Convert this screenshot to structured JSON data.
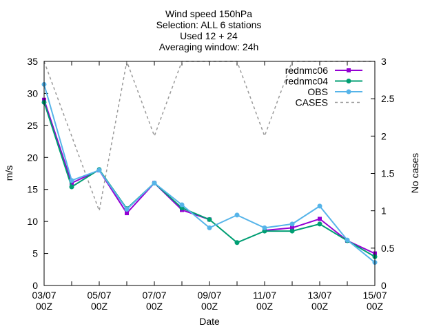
{
  "chart_data": {
    "type": "line",
    "title_lines": [
      "Wind speed 150hPa",
      "Selection: ALL      6 stations",
      "Used 12 + 24",
      "Averaging window: 24h"
    ],
    "xlabel": "Date",
    "ylabel": "m/s",
    "y2label": "No cases",
    "x_ticks": [
      {
        "line1": "03/07",
        "line2": "00Z"
      },
      {
        "line1": "05/07",
        "line2": "00Z"
      },
      {
        "line1": "07/07",
        "line2": "00Z"
      },
      {
        "line1": "09/07",
        "line2": "00Z"
      },
      {
        "line1": "11/07",
        "line2": "00Z"
      },
      {
        "line1": "13/07",
        "line2": "00Z"
      },
      {
        "line1": "15/07",
        "line2": "00Z"
      }
    ],
    "x": [
      0,
      1,
      2,
      3,
      4,
      5,
      6,
      7,
      8,
      9,
      10,
      11,
      12
    ],
    "xlim": [
      0,
      12
    ],
    "ylim": [
      0,
      35
    ],
    "y_ticks": [
      "0",
      "5",
      "10",
      "15",
      "20",
      "25",
      "30",
      "35"
    ],
    "y2lim": [
      0,
      3
    ],
    "y2_ticks": [
      "0",
      "0.5",
      "1",
      "1.5",
      "2",
      "2.5",
      "3"
    ],
    "grid": false,
    "legend_position": "top-right",
    "series": [
      {
        "name": "rednmc06",
        "color": "#9400d3",
        "marker": "square",
        "axis": "y",
        "values": [
          29.0,
          16.0,
          18.0,
          11.3,
          16.0,
          11.8,
          10.3,
          null,
          8.6,
          9.0,
          10.4,
          7.0,
          5.0
        ]
      },
      {
        "name": "rednmc04",
        "color": "#009e73",
        "marker": "circle",
        "axis": "y",
        "values": [
          28.6,
          15.4,
          18.1,
          12.0,
          16.0,
          12.1,
          10.3,
          6.7,
          8.5,
          8.5,
          9.6,
          7.0,
          4.5
        ]
      },
      {
        "name": "OBS",
        "color": "#56b4e9",
        "marker": "circle",
        "axis": "y",
        "values": [
          31.4,
          16.4,
          18.0,
          11.9,
          16.0,
          12.6,
          9.0,
          11.0,
          9.0,
          9.6,
          12.4,
          7.1,
          3.6
        ]
      },
      {
        "name": "CASES",
        "color": "#999999",
        "dashed": true,
        "axis": "y2",
        "values": [
          3,
          2,
          1,
          3,
          2,
          3,
          3,
          3,
          2,
          3,
          3,
          3,
          3
        ]
      }
    ]
  }
}
